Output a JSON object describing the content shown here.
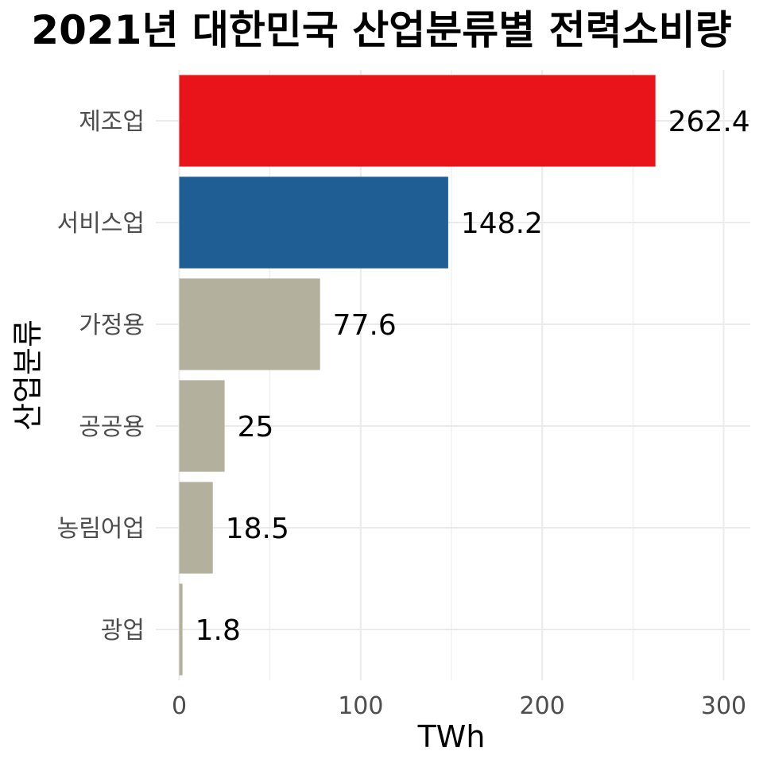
{
  "chart_data": {
    "type": "bar",
    "orientation": "horizontal",
    "title": "2021년 대한민국 산업분류별 전력소비량",
    "xlabel": "TWh",
    "ylabel": "산업분류",
    "categories": [
      "제조업",
      "서비스업",
      "가정용",
      "공공용",
      "농림어업",
      "광업"
    ],
    "values": [
      262.4,
      148.2,
      77.6,
      25,
      18.5,
      1.8
    ],
    "value_labels": [
      "262.4",
      "148.2",
      "77.6",
      "25",
      "18.5",
      "1.8"
    ],
    "colors": [
      "#e8141a",
      "#1f5e94",
      "#b3b09e",
      "#b3b09e",
      "#b3b09e",
      "#b3b09e"
    ],
    "xlim": [
      0,
      300
    ],
    "xticks": [
      0,
      100,
      200,
      300
    ],
    "grid": true,
    "legend": "none"
  }
}
